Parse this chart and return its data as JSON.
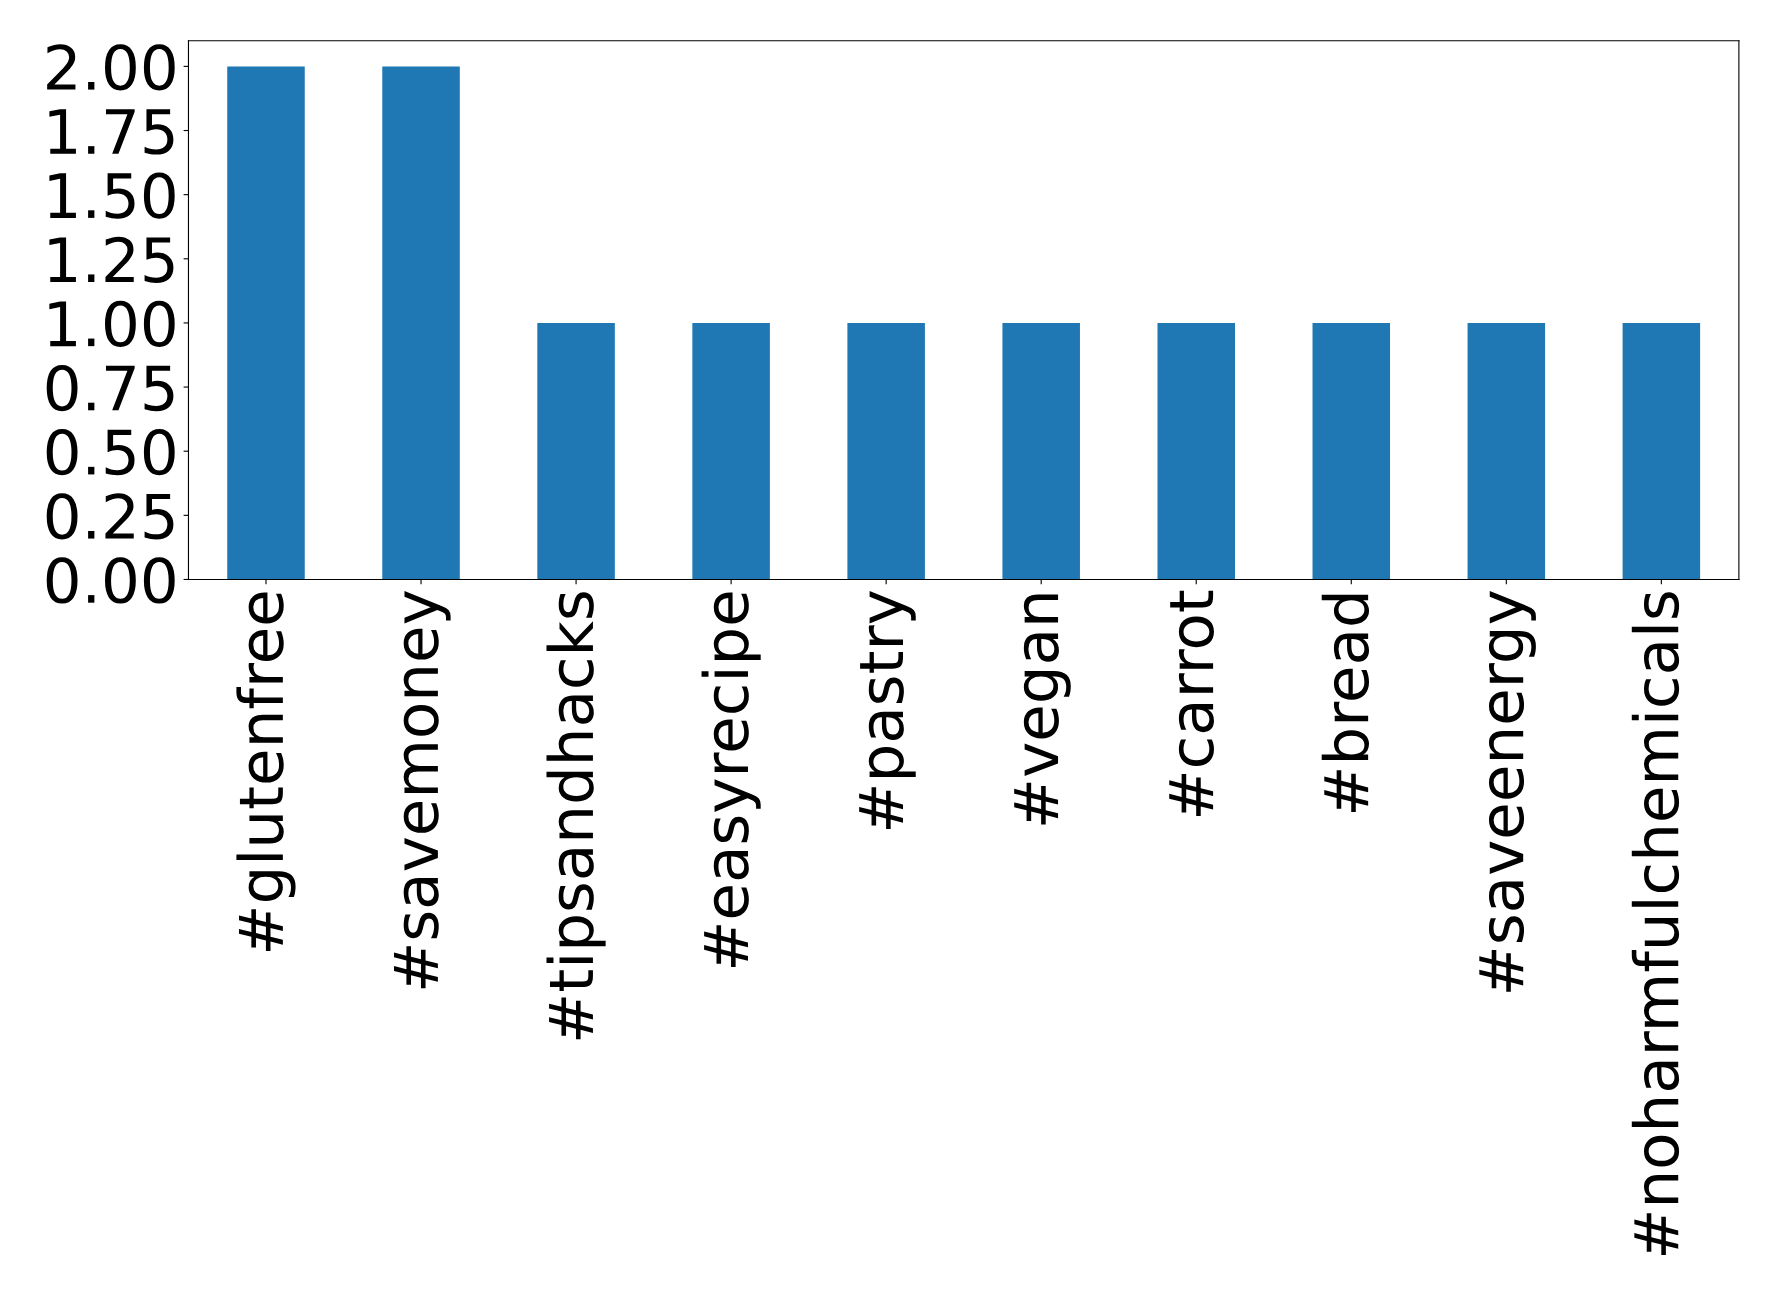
{
  "chart_data": {
    "type": "bar",
    "categories": [
      "#glutenfree",
      "#savemoney",
      "#tipsandhacks",
      "#easyrecipe",
      "#pastry",
      "#vegan",
      "#carrot",
      "#bread",
      "#saveenergy",
      "#noharmfulchemicals"
    ],
    "values": [
      2,
      2,
      1,
      1,
      1,
      1,
      1,
      1,
      1,
      1
    ],
    "color": "#1f77b4",
    "ylim": [
      0,
      2.1
    ],
    "yticks": [
      {
        "value": 0,
        "label": "0.00"
      },
      {
        "value": 0.25,
        "label": "0.25"
      },
      {
        "value": 0.5,
        "label": "0.50"
      },
      {
        "value": 0.75,
        "label": "0.75"
      },
      {
        "value": 1,
        "label": "1.00"
      },
      {
        "value": 1.25,
        "label": "1.25"
      },
      {
        "value": 1.5,
        "label": "1.50"
      },
      {
        "value": 1.75,
        "label": "1.75"
      },
      {
        "value": 2,
        "label": "2.00"
      }
    ],
    "grid": false,
    "legend": false
  }
}
